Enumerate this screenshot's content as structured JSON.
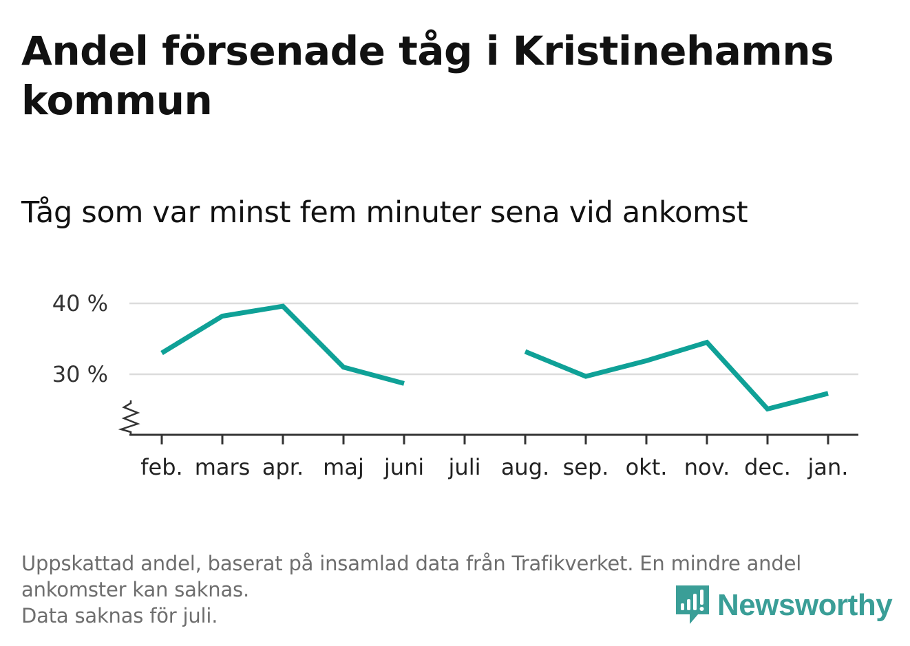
{
  "header": {
    "title": "Andel försenade tåg i Kristinehamns kommun",
    "subtitle": "Tåg som var minst fem minuter sena vid ankomst"
  },
  "footer": {
    "note_lines": [
      "Uppskattad andel, baserat på insamlad data från Trafikverket. En mindre andel",
      "ankomster kan saknas.",
      "Data saknas för juli."
    ],
    "brand": "Newsworthy",
    "brand_icon": "newsworthy-logo-icon",
    "brand_color": "#3a9e97"
  },
  "chart_data": {
    "type": "line",
    "categories": [
      "feb.",
      "mars",
      "apr.",
      "maj",
      "juni",
      "juli",
      "aug.",
      "sep.",
      "okt.",
      "nov.",
      "dec.",
      "jan."
    ],
    "series": [
      {
        "values": [
          33.0,
          38.2,
          39.6,
          31.0,
          28.7,
          null,
          33.2,
          29.7,
          31.9,
          34.5,
          25.1,
          27.3
        ],
        "color": "#0fa197"
      }
    ],
    "yticks": [
      30,
      40
    ],
    "ytick_labels": [
      "30 %",
      "40 %"
    ],
    "ylim": [
      21.4,
      40
    ],
    "axis_break": true,
    "grid": "horizontal",
    "legend": "none"
  }
}
